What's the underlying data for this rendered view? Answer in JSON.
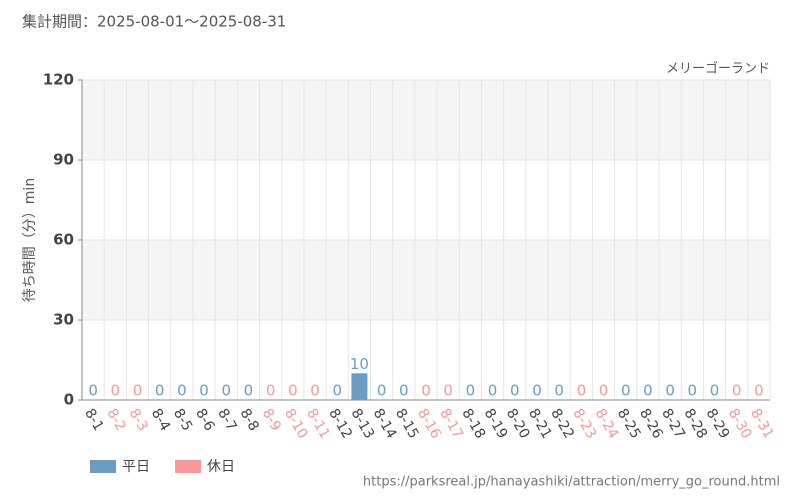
{
  "chart_data": {
    "type": "bar",
    "title": "集計期間：2025-08-01～2025-08-31",
    "subtitle": "メリーゴーランド",
    "y_label": "待ち時間（分）min",
    "source": "https://parksreal.jp/hanayashiki/attraction/merry_go_round.html",
    "categories": [
      "8-1",
      "8-2",
      "8-3",
      "8-4",
      "8-5",
      "8-6",
      "8-7",
      "8-8",
      "8-9",
      "8-10",
      "8-11",
      "8-12",
      "8-13",
      "8-14",
      "8-15",
      "8-16",
      "8-17",
      "8-18",
      "8-19",
      "8-20",
      "8-21",
      "8-22",
      "8-23",
      "8-24",
      "8-25",
      "8-26",
      "8-27",
      "8-28",
      "8-29",
      "8-30",
      "8-31"
    ],
    "series": [
      {
        "name": "平日",
        "color": "#6a9cc4",
        "values": [
          0,
          null,
          null,
          0,
          0,
          0,
          0,
          0,
          null,
          null,
          null,
          0,
          10,
          0,
          0,
          null,
          null,
          0,
          0,
          0,
          0,
          0,
          null,
          null,
          0,
          0,
          0,
          0,
          0,
          null,
          null
        ]
      },
      {
        "name": "休日",
        "color": "#f89898",
        "values": [
          null,
          0,
          0,
          null,
          null,
          null,
          null,
          null,
          0,
          0,
          0,
          null,
          null,
          null,
          null,
          0,
          0,
          null,
          null,
          null,
          null,
          null,
          0,
          0,
          null,
          null,
          null,
          null,
          null,
          0,
          0
        ]
      }
    ],
    "ylim": [
      0,
      120
    ],
    "yticks": [
      0,
      30,
      60,
      90,
      120
    ],
    "grid": true
  }
}
